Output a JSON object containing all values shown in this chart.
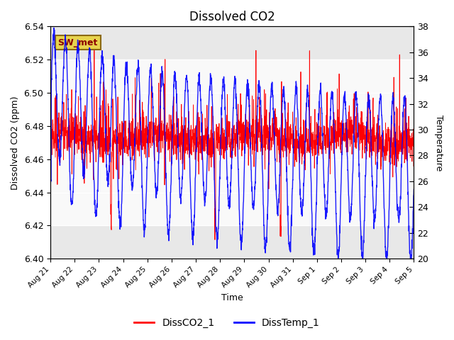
{
  "title": "Dissolved CO2",
  "ylabel_left": "Dissolved CO2 (ppm)",
  "ylabel_right": "Temperature",
  "xlabel": "Time",
  "legend_labels": [
    "DissCO2_1",
    "DissTemp_1"
  ],
  "legend_colors": [
    "red",
    "blue"
  ],
  "co2_ylim": [
    6.4,
    6.54
  ],
  "temp_ylim": [
    20,
    38
  ],
  "shade_co2_min": 6.42,
  "shade_co2_max": 6.52,
  "annotation_text": "SW_met",
  "tick_labels": [
    "Aug 21",
    "Aug 22",
    "Aug 23",
    "Aug 24",
    "Aug 25",
    "Aug 26",
    "Aug 27",
    "Aug 28",
    "Aug 29",
    "Aug 30",
    "Aug 31",
    "Sep 1",
    "Sep 2",
    "Sep 3",
    "Sep 4",
    "Sep 5"
  ],
  "plot_bg_color": "#e8e8e8",
  "shade_color": "#d8d8d8"
}
